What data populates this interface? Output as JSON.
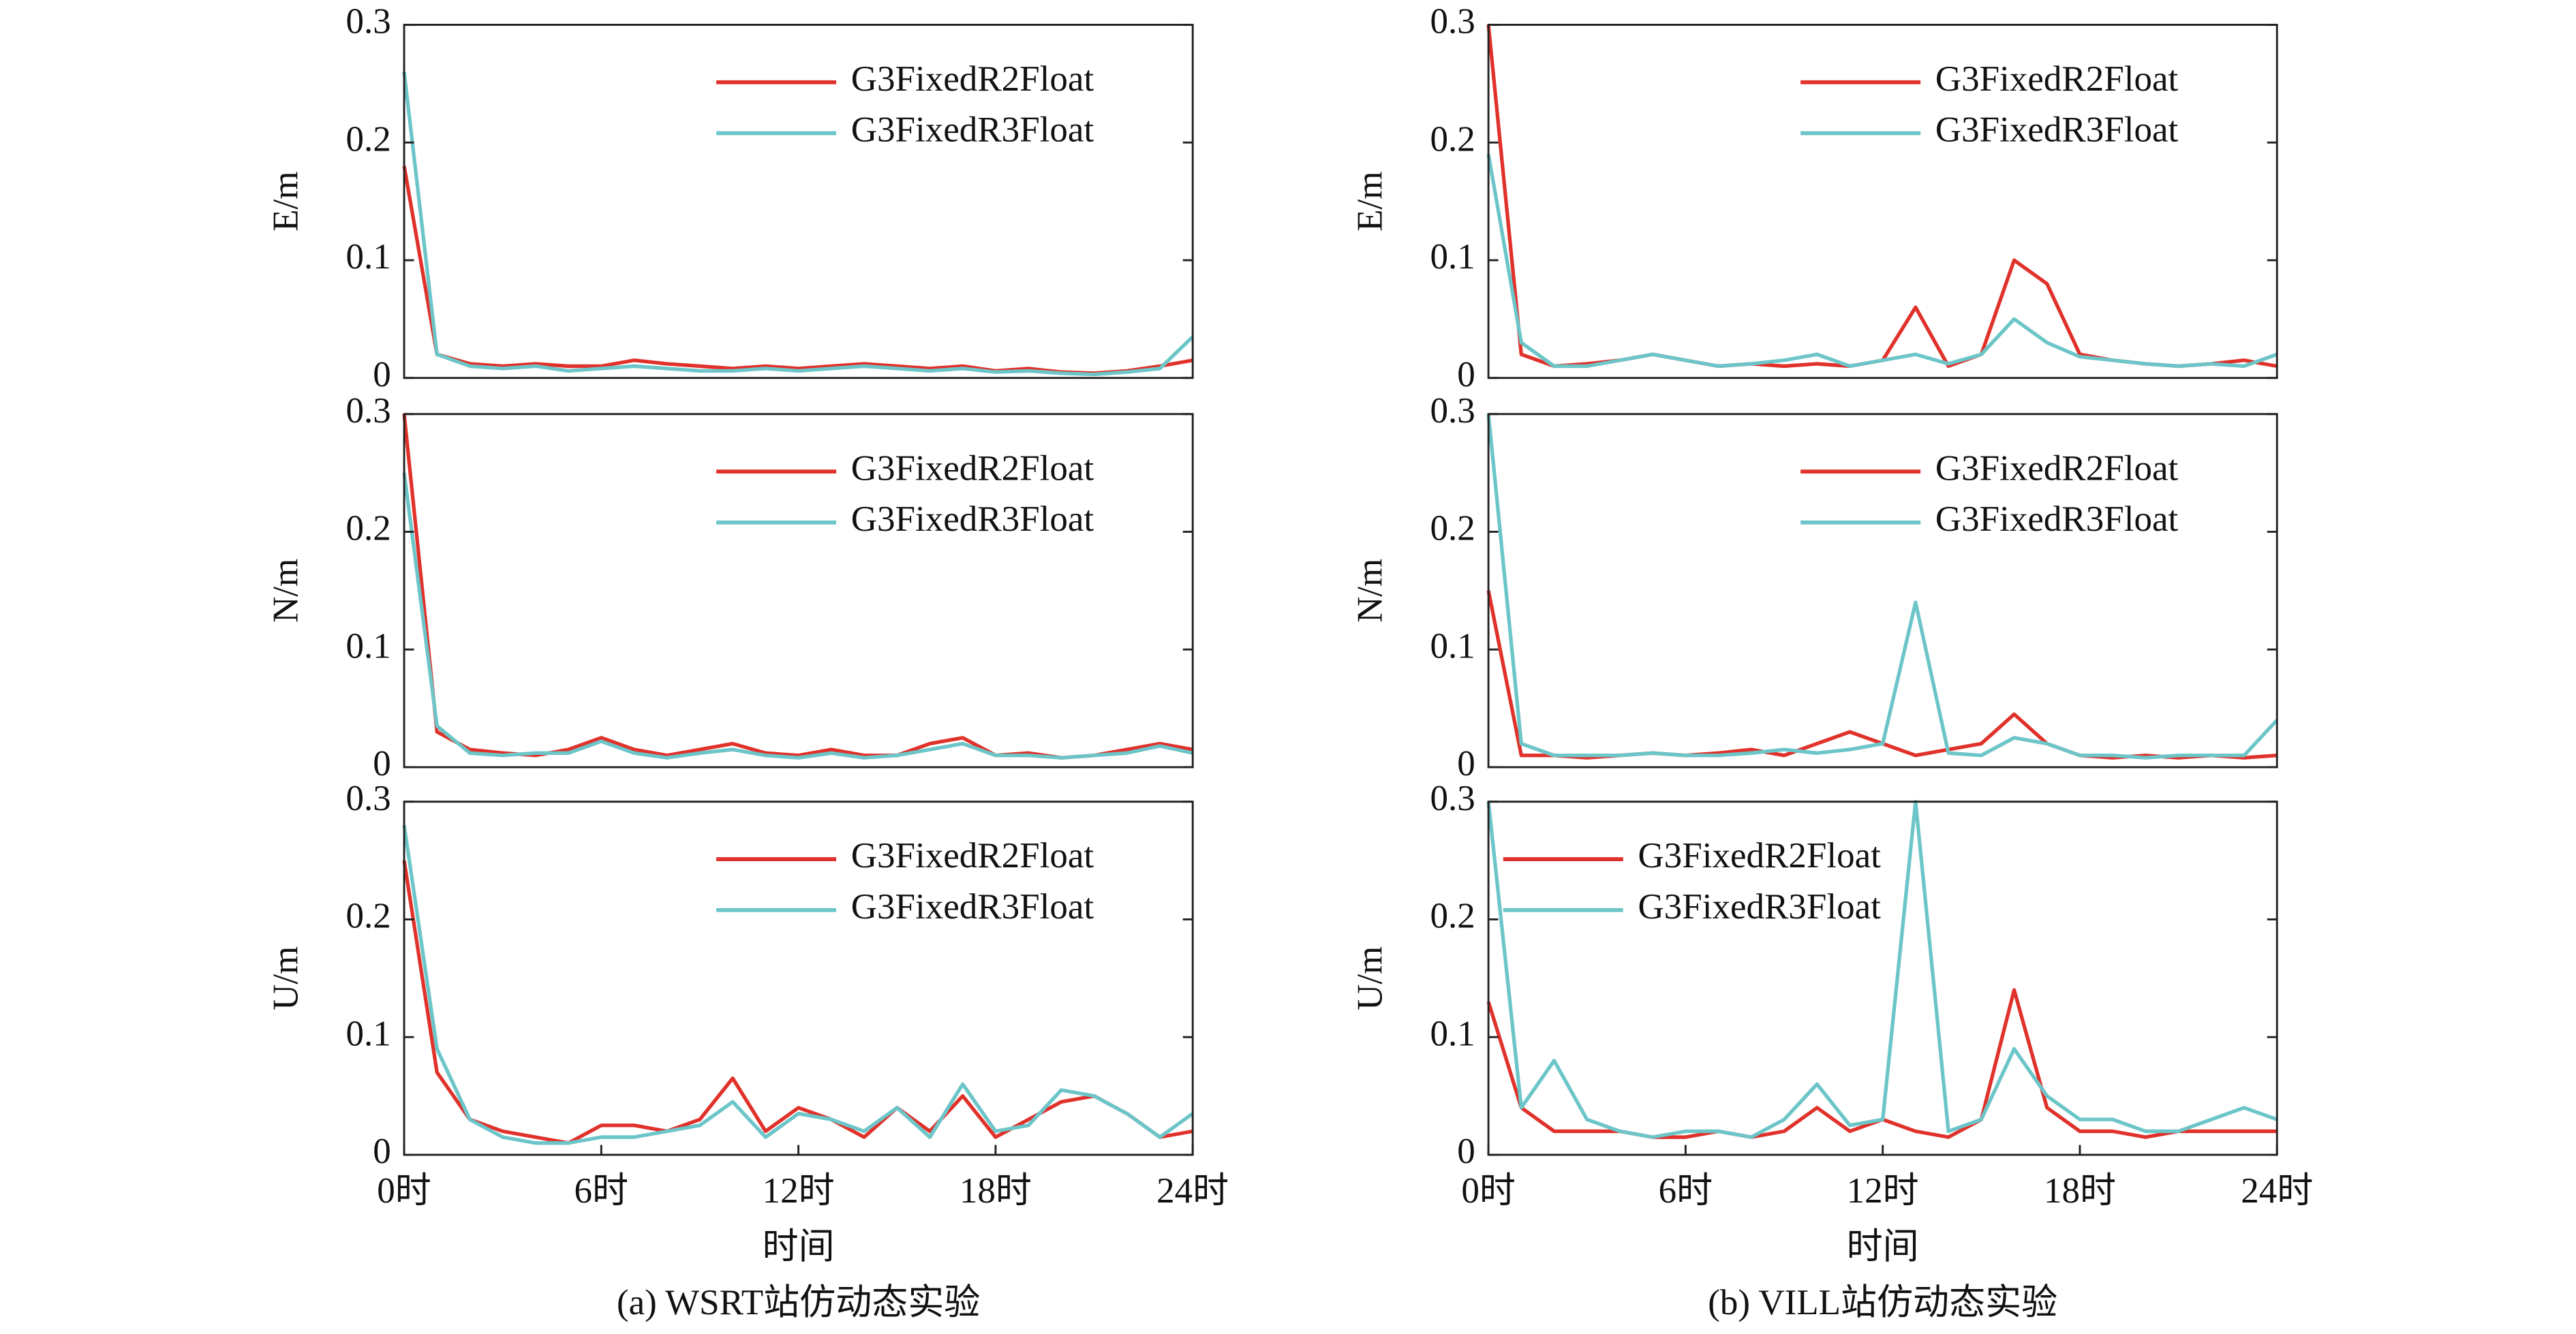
{
  "chart_data": [
    {
      "type": "line",
      "ylabel": "E/m",
      "legend": "upper right",
      "x": [
        0,
        1,
        2,
        3,
        4,
        5,
        6,
        7,
        8,
        9,
        10,
        11,
        12,
        13,
        14,
        15,
        16,
        17,
        18,
        19,
        20,
        21,
        22,
        23,
        24
      ],
      "xlim": [
        0,
        24
      ],
      "ylim": [
        0,
        0.3
      ],
      "yticks": [
        0,
        0.1,
        0.2,
        0.3
      ],
      "series": [
        {
          "name": "G3FixedR2Float",
          "color": "#e0312a",
          "values": [
            0.18,
            0.02,
            0.012,
            0.01,
            0.012,
            0.01,
            0.01,
            0.015,
            0.012,
            0.01,
            0.008,
            0.01,
            0.008,
            0.01,
            0.012,
            0.01,
            0.008,
            0.01,
            0.006,
            0.008,
            0.005,
            0.004,
            0.006,
            0.01,
            0.015
          ]
        },
        {
          "name": "G3FixedR3Float",
          "color": "#6cc5c8",
          "values": [
            0.26,
            0.02,
            0.01,
            0.008,
            0.01,
            0.006,
            0.008,
            0.01,
            0.008,
            0.006,
            0.006,
            0.008,
            0.006,
            0.008,
            0.01,
            0.008,
            0.006,
            0.008,
            0.005,
            0.006,
            0.004,
            0.003,
            0.005,
            0.008,
            0.035
          ]
        }
      ]
    },
    {
      "type": "line",
      "ylabel": "N/m",
      "legend": "upper right",
      "x": [
        0,
        1,
        2,
        3,
        4,
        5,
        6,
        7,
        8,
        9,
        10,
        11,
        12,
        13,
        14,
        15,
        16,
        17,
        18,
        19,
        20,
        21,
        22,
        23,
        24
      ],
      "xlim": [
        0,
        24
      ],
      "ylim": [
        0,
        0.3
      ],
      "yticks": [
        0,
        0.1,
        0.2,
        0.3
      ],
      "series": [
        {
          "name": "G3FixedR2Float",
          "color": "#e0312a",
          "values": [
            0.3,
            0.03,
            0.015,
            0.012,
            0.01,
            0.015,
            0.025,
            0.015,
            0.01,
            0.015,
            0.02,
            0.012,
            0.01,
            0.015,
            0.01,
            0.01,
            0.02,
            0.025,
            0.01,
            0.012,
            0.008,
            0.01,
            0.015,
            0.02,
            0.015
          ]
        },
        {
          "name": "G3FixedR3Float",
          "color": "#6cc5c8",
          "values": [
            0.25,
            0.035,
            0.012,
            0.01,
            0.012,
            0.012,
            0.022,
            0.012,
            0.008,
            0.012,
            0.015,
            0.01,
            0.008,
            0.012,
            0.008,
            0.01,
            0.015,
            0.02,
            0.01,
            0.01,
            0.008,
            0.01,
            0.012,
            0.018,
            0.012
          ]
        }
      ]
    },
    {
      "type": "line",
      "ylabel": "U/m",
      "xlabel": "时间",
      "caption": "(a) WSRT站仿动态实验",
      "legend": "upper right",
      "x": [
        0,
        1,
        2,
        3,
        4,
        5,
        6,
        7,
        8,
        9,
        10,
        11,
        12,
        13,
        14,
        15,
        16,
        17,
        18,
        19,
        20,
        21,
        22,
        23,
        24
      ],
      "xlim": [
        0,
        24
      ],
      "ylim": [
        0,
        0.3
      ],
      "yticks": [
        0,
        0.1,
        0.2,
        0.3
      ],
      "xticks": [
        {
          "value": 0,
          "label": "0时"
        },
        {
          "value": 6,
          "label": "6时"
        },
        {
          "value": 12,
          "label": "12时"
        },
        {
          "value": 18,
          "label": "18时"
        },
        {
          "value": 24,
          "label": "24时"
        }
      ],
      "series": [
        {
          "name": "G3FixedR2Float",
          "color": "#e0312a",
          "values": [
            0.25,
            0.07,
            0.03,
            0.02,
            0.015,
            0.01,
            0.025,
            0.025,
            0.02,
            0.03,
            0.065,
            0.02,
            0.04,
            0.03,
            0.015,
            0.04,
            0.02,
            0.05,
            0.015,
            0.03,
            0.045,
            0.05,
            0.035,
            0.015,
            0.02
          ]
        },
        {
          "name": "G3FixedR3Float",
          "color": "#6cc5c8",
          "values": [
            0.28,
            0.09,
            0.03,
            0.015,
            0.01,
            0.01,
            0.015,
            0.015,
            0.02,
            0.025,
            0.045,
            0.015,
            0.035,
            0.03,
            0.02,
            0.04,
            0.015,
            0.06,
            0.02,
            0.025,
            0.055,
            0.05,
            0.035,
            0.015,
            0.035
          ]
        }
      ]
    },
    {
      "type": "line",
      "ylabel": "E/m",
      "legend": "upper right",
      "x": [
        0,
        1,
        2,
        3,
        4,
        5,
        6,
        7,
        8,
        9,
        10,
        11,
        12,
        13,
        14,
        15,
        16,
        17,
        18,
        19,
        20,
        21,
        22,
        23,
        24
      ],
      "xlim": [
        0,
        24
      ],
      "ylim": [
        0,
        0.3
      ],
      "yticks": [
        0,
        0.1,
        0.2,
        0.3
      ],
      "series": [
        {
          "name": "G3FixedR2Float",
          "color": "#e0312a",
          "values": [
            0.3,
            0.02,
            0.01,
            0.012,
            0.015,
            0.02,
            0.015,
            0.01,
            0.012,
            0.01,
            0.012,
            0.01,
            0.015,
            0.06,
            0.01,
            0.02,
            0.1,
            0.08,
            0.02,
            0.015,
            0.012,
            0.01,
            0.012,
            0.015,
            0.01
          ]
        },
        {
          "name": "G3FixedR3Float",
          "color": "#6cc5c8",
          "values": [
            0.19,
            0.03,
            0.01,
            0.01,
            0.015,
            0.02,
            0.015,
            0.01,
            0.012,
            0.015,
            0.02,
            0.01,
            0.015,
            0.02,
            0.012,
            0.02,
            0.05,
            0.03,
            0.018,
            0.015,
            0.012,
            0.01,
            0.012,
            0.01,
            0.02
          ]
        }
      ]
    },
    {
      "type": "line",
      "ylabel": "N/m",
      "legend": "upper right",
      "x": [
        0,
        1,
        2,
        3,
        4,
        5,
        6,
        7,
        8,
        9,
        10,
        11,
        12,
        13,
        14,
        15,
        16,
        17,
        18,
        19,
        20,
        21,
        22,
        23,
        24
      ],
      "xlim": [
        0,
        24
      ],
      "ylim": [
        0,
        0.3
      ],
      "yticks": [
        0,
        0.1,
        0.2,
        0.3
      ],
      "series": [
        {
          "name": "G3FixedR2Float",
          "color": "#e0312a",
          "values": [
            0.15,
            0.01,
            0.01,
            0.008,
            0.01,
            0.012,
            0.01,
            0.012,
            0.015,
            0.01,
            0.02,
            0.03,
            0.02,
            0.01,
            0.015,
            0.02,
            0.045,
            0.02,
            0.01,
            0.008,
            0.01,
            0.008,
            0.01,
            0.008,
            0.01
          ]
        },
        {
          "name": "G3FixedR3Float",
          "color": "#6cc5c8",
          "values": [
            0.3,
            0.02,
            0.01,
            0.01,
            0.01,
            0.012,
            0.01,
            0.01,
            0.012,
            0.015,
            0.012,
            0.015,
            0.02,
            0.14,
            0.012,
            0.01,
            0.025,
            0.02,
            0.01,
            0.01,
            0.008,
            0.01,
            0.01,
            0.01,
            0.04
          ]
        }
      ]
    },
    {
      "type": "line",
      "ylabel": "U/m",
      "xlabel": "时间",
      "caption": "(b) VILL站仿动态实验",
      "legend": "upper left",
      "x": [
        0,
        1,
        2,
        3,
        4,
        5,
        6,
        7,
        8,
        9,
        10,
        11,
        12,
        13,
        14,
        15,
        16,
        17,
        18,
        19,
        20,
        21,
        22,
        23,
        24
      ],
      "xlim": [
        0,
        24
      ],
      "ylim": [
        0,
        0.3
      ],
      "yticks": [
        0,
        0.1,
        0.2,
        0.3
      ],
      "xticks": [
        {
          "value": 0,
          "label": "0时"
        },
        {
          "value": 6,
          "label": "6时"
        },
        {
          "value": 12,
          "label": "12时"
        },
        {
          "value": 18,
          "label": "18时"
        },
        {
          "value": 24,
          "label": "24时"
        }
      ],
      "series": [
        {
          "name": "G3FixedR2Float",
          "color": "#e0312a",
          "values": [
            0.13,
            0.04,
            0.02,
            0.02,
            0.02,
            0.015,
            0.015,
            0.02,
            0.015,
            0.02,
            0.04,
            0.02,
            0.03,
            0.02,
            0.015,
            0.03,
            0.14,
            0.04,
            0.02,
            0.02,
            0.015,
            0.02,
            0.02,
            0.02,
            0.02
          ]
        },
        {
          "name": "G3FixedR3Float",
          "color": "#6cc5c8",
          "values": [
            0.3,
            0.04,
            0.08,
            0.03,
            0.02,
            0.015,
            0.02,
            0.02,
            0.015,
            0.03,
            0.06,
            0.025,
            0.03,
            0.3,
            0.02,
            0.03,
            0.09,
            0.05,
            0.03,
            0.03,
            0.02,
            0.02,
            0.03,
            0.04,
            0.03
          ]
        }
      ]
    }
  ]
}
